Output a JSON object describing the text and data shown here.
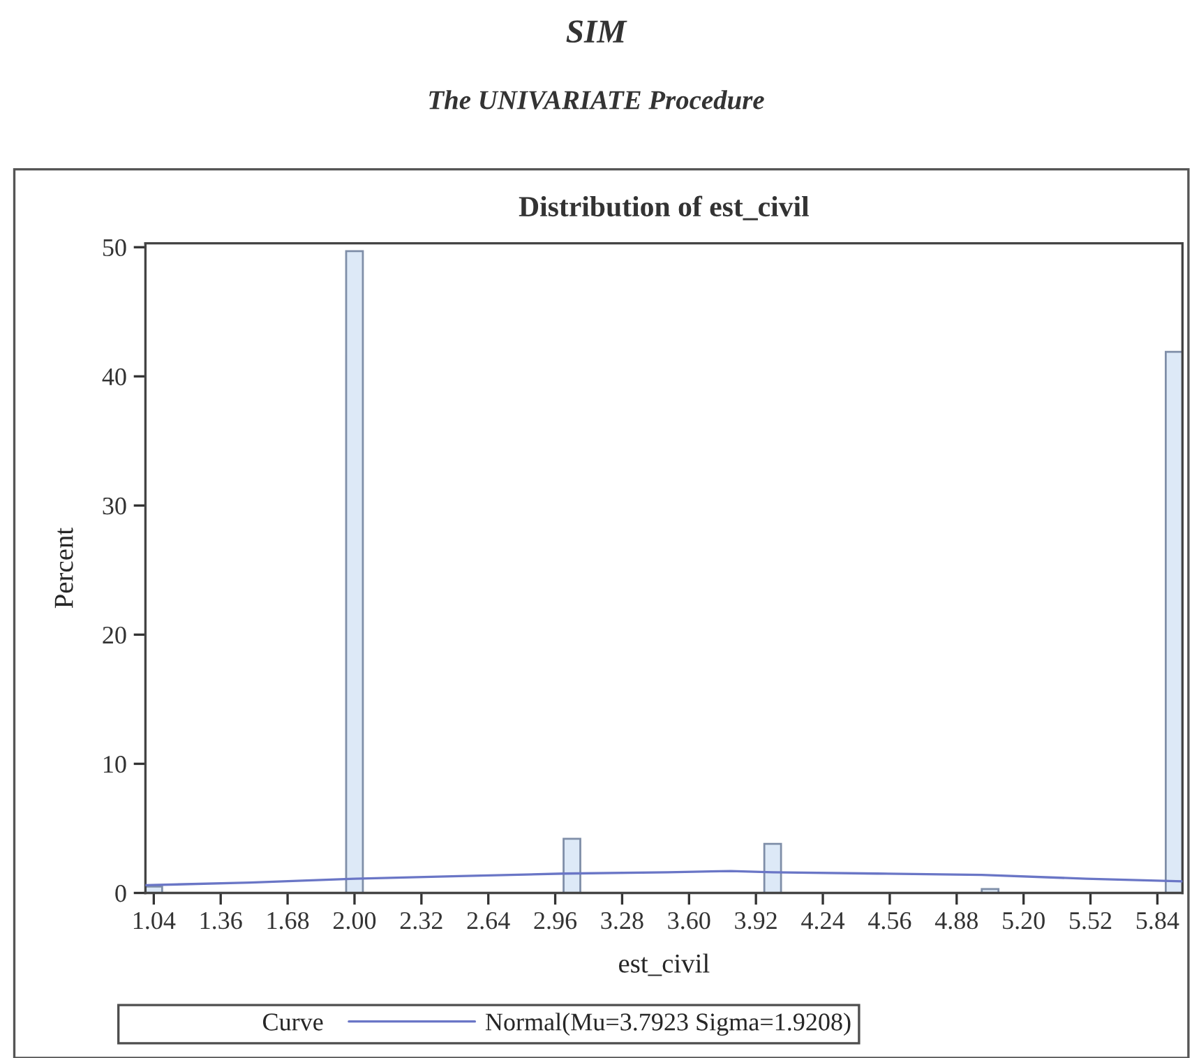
{
  "chart_data": {
    "type": "histogram",
    "title": "SIM",
    "subtitle": "The UNIVARIATE Procedure",
    "annotations": [
      "Distribution of est_civil"
    ],
    "xlabel": "est_civil",
    "ylabel": "Percent",
    "legend_title": "Curve",
    "legend": "bottom",
    "grid": false,
    "bins": [
      1.0,
      1.08,
      1.16,
      1.24,
      1.32,
      1.4,
      1.48,
      1.56,
      1.64,
      1.72,
      1.8,
      1.88,
      1.96,
      2.04,
      2.12,
      2.2,
      2.28,
      2.36,
      2.44,
      2.52,
      2.6,
      2.68,
      2.76,
      2.84,
      2.92,
      3.0,
      3.08,
      3.16,
      3.24,
      3.32,
      3.4,
      3.48,
      3.56,
      3.64,
      3.72,
      3.8,
      3.88,
      3.96,
      4.04,
      4.12,
      4.2,
      4.28,
      4.36,
      4.44,
      4.52,
      4.6,
      4.68,
      4.76,
      4.84,
      4.92,
      5.0,
      5.08,
      5.16,
      5.24,
      5.32,
      5.4,
      5.48,
      5.56,
      5.64,
      5.72,
      5.8,
      5.88,
      5.96
    ],
    "values": [
      0.5,
      0,
      0,
      0,
      0,
      0,
      0,
      0,
      0,
      0,
      0,
      0,
      49.7,
      0,
      0,
      0,
      0,
      0,
      0,
      0,
      0,
      0,
      0,
      0,
      0,
      4.2,
      0,
      0,
      0,
      0,
      0,
      0,
      0,
      0,
      0,
      0,
      0,
      3.8,
      0,
      0,
      0,
      0,
      0,
      0,
      0,
      0,
      0,
      0,
      0,
      0,
      0.3,
      0,
      0,
      0,
      0,
      0,
      0,
      0,
      0,
      0,
      0,
      41.9
    ],
    "color": "#dde9f7",
    "series": [
      {
        "type": "line",
        "name": "Normal(Mu=3.7923 Sigma=1.9208)",
        "color": "#6a76c6",
        "x": [
          1.0,
          1.5,
          2.0,
          2.5,
          3.0,
          3.5,
          3.8,
          4.0,
          4.5,
          5.0,
          5.5,
          5.96
        ],
        "values": [
          0.6,
          0.8,
          1.1,
          1.3,
          1.5,
          1.6,
          1.7,
          1.6,
          1.5,
          1.4,
          1.1,
          0.9
        ]
      }
    ],
    "xlim": [
      1.0,
      5.96
    ],
    "ylim": [
      0,
      50.3
    ],
    "xticks": [
      1.04,
      1.36,
      1.68,
      {
        "value": 2.0,
        "label": "2.00"
      },
      2.32,
      2.64,
      2.96,
      3.28,
      {
        "value": 3.6,
        "label": "3.60"
      },
      3.92,
      4.24,
      4.56,
      4.88,
      {
        "value": 5.2,
        "label": "5.20"
      },
      5.52,
      5.84
    ],
    "yticks": [
      0,
      10,
      20,
      30,
      40,
      50
    ]
  }
}
